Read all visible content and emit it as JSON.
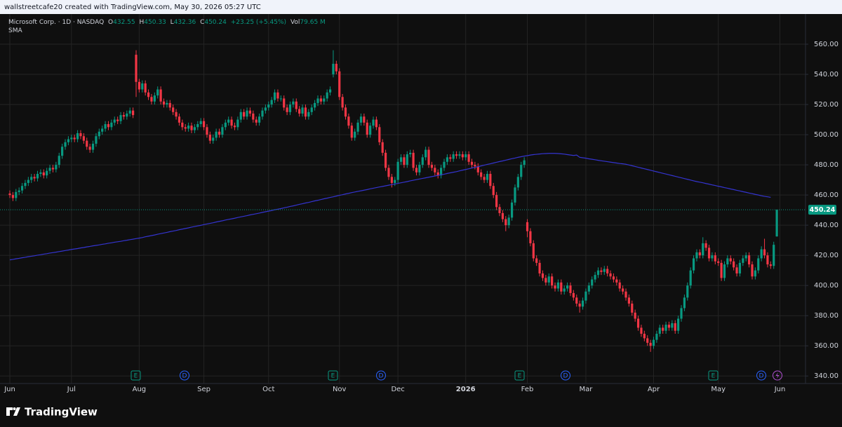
{
  "header": {
    "attribution": "wallstreetcafe20 created with TradingView.com, May 30, 2026 05:27 UTC"
  },
  "legend": {
    "symbol": "Microsoft Corp. · 1D · NASDAQ",
    "open_label": "O",
    "high_label": "H",
    "low_label": "L",
    "close_label": "C",
    "change": "+23.25 (+5.45%)",
    "volume_label": "Vol",
    "volume": "79.65 M"
  },
  "events": [
    "E",
    "D",
    "E",
    "D",
    "E",
    "D",
    "E",
    "D"
  ],
  "footer": {
    "logo": "TradingView"
  },
  "chart_data": {
    "type": "candlestick",
    "up_color": "#089981",
    "down_color": "#f23645",
    "grid": true,
    "ylim": [
      335,
      580
    ],
    "yticks": [
      {
        "value": 340,
        "label": "340.00"
      },
      {
        "value": 360,
        "label": "360.00"
      },
      {
        "value": 380,
        "label": "380.00"
      },
      {
        "value": 400,
        "label": "400.00"
      },
      {
        "value": 420,
        "label": "420.00"
      },
      {
        "value": 440,
        "label": "440.00"
      },
      {
        "value": 460,
        "label": "460.00"
      },
      {
        "value": 480,
        "label": "480.00"
      },
      {
        "value": 500,
        "label": "500.00"
      },
      {
        "value": 520,
        "label": "520.00"
      },
      {
        "value": 540,
        "label": "540.00"
      },
      {
        "value": 560,
        "label": "560.00"
      }
    ],
    "categories": [
      "Jun",
      null,
      null,
      null,
      null,
      null,
      null,
      null,
      null,
      null,
      null,
      null,
      null,
      null,
      null,
      null,
      null,
      null,
      null,
      null,
      "Jul",
      null,
      null,
      null,
      null,
      null,
      null,
      null,
      null,
      null,
      null,
      null,
      null,
      null,
      null,
      null,
      null,
      null,
      null,
      null,
      null,
      null,
      "Aug",
      null,
      null,
      null,
      null,
      null,
      null,
      null,
      null,
      null,
      null,
      null,
      null,
      null,
      null,
      null,
      null,
      null,
      null,
      null,
      null,
      "Sep",
      null,
      null,
      null,
      null,
      null,
      null,
      null,
      null,
      null,
      null,
      null,
      null,
      null,
      null,
      null,
      null,
      null,
      null,
      null,
      null,
      "Oct",
      null,
      null,
      null,
      null,
      null,
      null,
      null,
      null,
      null,
      null,
      null,
      null,
      null,
      null,
      null,
      null,
      null,
      null,
      null,
      null,
      null,
      null,
      "Nov",
      null,
      null,
      null,
      null,
      null,
      null,
      null,
      null,
      null,
      null,
      null,
      null,
      null,
      null,
      null,
      null,
      null,
      null,
      "Dec",
      null,
      null,
      null,
      null,
      null,
      null,
      null,
      null,
      null,
      null,
      null,
      null,
      null,
      null,
      null,
      null,
      null,
      null,
      null,
      null,
      null,
      "2026",
      null,
      null,
      null,
      null,
      null,
      null,
      null,
      null,
      null,
      null,
      null,
      null,
      null,
      null,
      null,
      null,
      null,
      null,
      null,
      "Feb",
      null,
      null,
      null,
      null,
      null,
      null,
      null,
      null,
      null,
      null,
      null,
      null,
      null,
      null,
      null,
      null,
      null,
      null,
      "Mar",
      null,
      null,
      null,
      null,
      null,
      null,
      null,
      null,
      null,
      null,
      null,
      null,
      null,
      null,
      null,
      null,
      null,
      null,
      null,
      null,
      null,
      "Apr",
      null,
      null,
      null,
      null,
      null,
      null,
      null,
      null,
      null,
      null,
      null,
      null,
      null,
      null,
      null,
      null,
      null,
      null,
      null,
      null,
      "May",
      null,
      null,
      null,
      null,
      null,
      null,
      null,
      null,
      null,
      null,
      null,
      null,
      null,
      null,
      null,
      null,
      null,
      null,
      null,
      "Jun"
    ],
    "open": [
      461,
      460,
      458,
      462,
      463,
      466,
      468,
      470,
      472,
      471,
      474,
      475,
      473,
      476,
      478,
      477,
      480,
      486,
      492,
      495,
      497,
      498,
      497,
      501,
      499,
      496,
      492,
      490,
      494,
      499,
      502,
      504,
      507,
      505,
      508,
      510,
      509,
      513,
      512,
      514,
      516,
      553,
      535,
      530,
      534,
      528,
      525,
      522,
      526,
      530,
      522,
      520,
      521,
      518,
      515,
      512,
      508,
      505,
      504,
      506,
      503,
      505,
      507,
      509,
      505,
      500,
      496,
      498,
      502,
      500,
      505,
      508,
      510,
      506,
      505,
      510,
      515,
      512,
      516,
      514,
      510,
      508,
      512,
      516,
      518,
      520,
      523,
      528,
      524,
      524,
      518,
      515,
      520,
      522,
      517,
      514,
      518,
      512,
      515,
      518,
      521,
      524,
      522,
      524,
      528,
      540,
      547,
      542,
      525,
      518,
      512,
      506,
      498,
      502,
      508,
      512,
      508,
      500,
      506,
      510,
      505,
      495,
      488,
      478,
      472,
      468,
      470,
      482,
      485,
      480,
      487,
      488,
      478,
      475,
      480,
      485,
      490,
      480,
      478,
      475,
      473,
      478,
      482,
      485,
      484,
      487,
      486,
      487,
      485,
      487,
      482,
      480,
      479,
      475,
      472,
      470,
      474,
      466,
      460,
      452,
      448,
      444,
      440,
      445,
      455,
      465,
      472,
      480,
      442,
      436,
      428,
      418,
      415,
      408,
      405,
      402,
      406,
      400,
      398,
      402,
      396,
      398,
      400,
      395,
      392,
      388,
      386,
      390,
      396,
      400,
      404,
      407,
      410,
      409,
      411,
      408,
      406,
      404,
      402,
      398,
      396,
      392,
      388,
      382,
      378,
      372,
      368,
      365,
      362,
      360,
      364,
      368,
      372,
      370,
      374,
      372,
      375,
      370,
      378,
      385,
      392,
      400,
      410,
      418,
      422,
      420,
      428,
      425,
      418,
      420,
      416,
      415,
      405,
      414,
      418,
      416,
      412,
      408,
      415,
      418,
      420,
      414,
      406,
      410,
      418,
      424,
      420,
      414,
      413,
      432.55,
      null
    ],
    "high": [
      463,
      462,
      464,
      465,
      468,
      470,
      472,
      474,
      474,
      476,
      477,
      477,
      478,
      480,
      480,
      482,
      488,
      494,
      497,
      499,
      500,
      500,
      503,
      503,
      501,
      498,
      494,
      496,
      501,
      504,
      506,
      509,
      509,
      510,
      512,
      512,
      515,
      515,
      516,
      518,
      518,
      556,
      537,
      536,
      536,
      530,
      527,
      528,
      532,
      532,
      524,
      523,
      523,
      520,
      517,
      514,
      510,
      507,
      508,
      508,
      507,
      509,
      511,
      511,
      507,
      502,
      500,
      504,
      504,
      507,
      510,
      512,
      512,
      508,
      512,
      517,
      517,
      518,
      518,
      516,
      512,
      514,
      518,
      520,
      522,
      525,
      530,
      530,
      526,
      526,
      520,
      522,
      524,
      524,
      519,
      520,
      520,
      517,
      520,
      523,
      526,
      526,
      526,
      530,
      532,
      556,
      549,
      544,
      527,
      520,
      514,
      508,
      504,
      510,
      514,
      514,
      510,
      508,
      512,
      512,
      507,
      497,
      490,
      480,
      474,
      472,
      484,
      487,
      487,
      489,
      490,
      490,
      480,
      482,
      487,
      492,
      492,
      482,
      480,
      477,
      480,
      484,
      487,
      487,
      489,
      489,
      489,
      489,
      489,
      489,
      484,
      482,
      481,
      477,
      474,
      476,
      476,
      468,
      462,
      454,
      450,
      446,
      447,
      457,
      467,
      474,
      482,
      485,
      444,
      438,
      430,
      420,
      417,
      410,
      407,
      408,
      408,
      402,
      404,
      404,
      400,
      402,
      402,
      397,
      394,
      390,
      392,
      398,
      402,
      406,
      409,
      412,
      412,
      413,
      413,
      410,
      408,
      406,
      404,
      400,
      398,
      394,
      390,
      384,
      380,
      374,
      370,
      367,
      364,
      366,
      370,
      374,
      374,
      376,
      376,
      377,
      377,
      380,
      387,
      394,
      402,
      412,
      420,
      424,
      424,
      432,
      430,
      427,
      422,
      422,
      418,
      417,
      416,
      420,
      420,
      418,
      414,
      417,
      420,
      422,
      422,
      416,
      412,
      420,
      426,
      431,
      422,
      416,
      429,
      450.33,
      null
    ],
    "low": [
      458,
      456,
      456,
      460,
      461,
      464,
      466,
      468,
      469,
      469,
      472,
      471,
      471,
      474,
      475,
      475,
      478,
      484,
      490,
      493,
      495,
      495,
      495,
      497,
      494,
      490,
      488,
      488,
      492,
      497,
      500,
      502,
      503,
      503,
      506,
      507,
      507,
      510,
      510,
      512,
      511,
      525,
      528,
      528,
      526,
      523,
      520,
      520,
      524,
      520,
      518,
      518,
      516,
      513,
      510,
      506,
      503,
      502,
      502,
      501,
      501,
      503,
      505,
      503,
      498,
      494,
      494,
      496,
      498,
      498,
      503,
      506,
      504,
      503,
      503,
      508,
      510,
      510,
      512,
      508,
      506,
      506,
      510,
      514,
      516,
      518,
      521,
      522,
      522,
      516,
      513,
      513,
      518,
      515,
      512,
      512,
      510,
      510,
      513,
      516,
      519,
      520,
      520,
      522,
      526,
      538,
      540,
      523,
      516,
      510,
      504,
      496,
      496,
      500,
      506,
      506,
      498,
      498,
      504,
      503,
      493,
      486,
      476,
      470,
      465,
      466,
      468,
      480,
      478,
      478,
      485,
      476,
      473,
      473,
      478,
      483,
      478,
      476,
      473,
      471,
      471,
      476,
      480,
      482,
      482,
      484,
      484,
      483,
      483,
      480,
      478,
      477,
      473,
      470,
      468,
      468,
      464,
      458,
      450,
      446,
      442,
      436,
      438,
      443,
      453,
      463,
      470,
      478,
      432,
      426,
      416,
      413,
      406,
      403,
      400,
      400,
      398,
      396,
      396,
      394,
      394,
      396,
      393,
      390,
      386,
      382,
      384,
      388,
      394,
      398,
      402,
      405,
      407,
      407,
      406,
      404,
      402,
      400,
      396,
      394,
      390,
      386,
      380,
      376,
      370,
      366,
      363,
      360,
      356,
      358,
      362,
      366,
      368,
      368,
      370,
      370,
      368,
      368,
      376,
      383,
      390,
      398,
      408,
      416,
      418,
      418,
      423,
      416,
      416,
      414,
      413,
      403,
      403,
      412,
      414,
      410,
      406,
      406,
      413,
      416,
      412,
      404,
      404,
      408,
      416,
      418,
      412,
      411,
      411,
      432.36,
      null
    ],
    "close": [
      460,
      458,
      462,
      463,
      466,
      468,
      470,
      472,
      471,
      474,
      475,
      473,
      476,
      478,
      477,
      480,
      486,
      492,
      495,
      497,
      498,
      497,
      501,
      499,
      496,
      492,
      490,
      494,
      499,
      502,
      504,
      507,
      505,
      508,
      510,
      509,
      513,
      512,
      514,
      516,
      513,
      535,
      530,
      534,
      528,
      525,
      522,
      526,
      530,
      522,
      520,
      521,
      518,
      515,
      512,
      508,
      505,
      504,
      506,
      503,
      505,
      507,
      509,
      505,
      500,
      496,
      498,
      502,
      500,
      505,
      508,
      510,
      506,
      505,
      510,
      515,
      512,
      516,
      514,
      510,
      508,
      512,
      516,
      518,
      520,
      523,
      528,
      524,
      524,
      518,
      515,
      520,
      522,
      517,
      514,
      518,
      512,
      515,
      518,
      521,
      524,
      522,
      524,
      528,
      530,
      547,
      542,
      525,
      518,
      512,
      506,
      498,
      502,
      508,
      512,
      508,
      500,
      506,
      510,
      505,
      495,
      488,
      478,
      472,
      468,
      470,
      482,
      485,
      480,
      487,
      488,
      478,
      475,
      480,
      485,
      490,
      480,
      478,
      475,
      473,
      478,
      482,
      485,
      484,
      487,
      486,
      487,
      485,
      487,
      482,
      480,
      479,
      475,
      472,
      470,
      474,
      466,
      460,
      452,
      448,
      444,
      440,
      445,
      455,
      465,
      472,
      480,
      483,
      436,
      428,
      418,
      415,
      408,
      405,
      402,
      406,
      400,
      398,
      402,
      396,
      398,
      400,
      395,
      392,
      388,
      386,
      390,
      396,
      400,
      404,
      407,
      410,
      409,
      411,
      408,
      406,
      404,
      402,
      398,
      396,
      392,
      388,
      382,
      378,
      372,
      368,
      365,
      362,
      360,
      364,
      368,
      372,
      370,
      374,
      372,
      375,
      370,
      378,
      385,
      392,
      400,
      410,
      418,
      422,
      420,
      428,
      425,
      418,
      420,
      416,
      415,
      405,
      414,
      418,
      416,
      412,
      408,
      415,
      418,
      420,
      414,
      406,
      410,
      418,
      424,
      420,
      414,
      413,
      426.99,
      450.24,
      null
    ],
    "sma": {
      "name": "SMA",
      "color": "#3434d0",
      "values": [
        417.0,
        417.3,
        417.7,
        418.0,
        418.4,
        418.7,
        419.1,
        419.4,
        419.7,
        420.1,
        420.4,
        420.8,
        421.1,
        421.5,
        421.8,
        422.1,
        422.5,
        422.8,
        423.2,
        423.5,
        423.9,
        424.2,
        424.5,
        424.9,
        425.2,
        425.6,
        425.9,
        426.3,
        426.6,
        426.9,
        427.3,
        427.6,
        428.0,
        428.3,
        428.7,
        429.0,
        429.3,
        429.7,
        430.0,
        430.4,
        430.7,
        431.1,
        431.4,
        431.8,
        432.3,
        432.7,
        433.1,
        433.5,
        434.0,
        434.4,
        434.8,
        435.2,
        435.7,
        436.1,
        436.5,
        437.0,
        437.4,
        437.8,
        438.2,
        438.7,
        439.1,
        439.5,
        439.9,
        440.4,
        440.8,
        441.2,
        441.6,
        442.1,
        442.5,
        442.9,
        443.4,
        443.8,
        444.2,
        444.6,
        445.1,
        445.5,
        445.9,
        446.3,
        446.8,
        447.2,
        447.6,
        448.0,
        448.5,
        448.9,
        449.3,
        449.7,
        450.2,
        450.6,
        451.0,
        451.5,
        451.9,
        452.4,
        452.8,
        453.3,
        453.8,
        454.2,
        454.7,
        455.1,
        455.6,
        456.1,
        456.5,
        457.0,
        457.5,
        457.9,
        458.4,
        458.8,
        459.3,
        459.8,
        460.2,
        460.7,
        461.1,
        461.6,
        462.0,
        462.4,
        462.8,
        463.2,
        463.6,
        464.1,
        464.5,
        464.9,
        465.3,
        465.7,
        466.1,
        466.5,
        466.9,
        467.3,
        467.7,
        468.1,
        468.5,
        468.9,
        469.4,
        469.8,
        470.2,
        470.6,
        471.0,
        471.4,
        471.8,
        472.2,
        472.6,
        473.0,
        473.4,
        473.8,
        474.3,
        474.7,
        475.1,
        475.5,
        476.0,
        476.5,
        476.9,
        477.4,
        477.9,
        478.4,
        478.8,
        479.3,
        479.8,
        480.3,
        480.7,
        481.2,
        481.7,
        482.2,
        482.6,
        483.1,
        483.6,
        484.1,
        484.5,
        485.0,
        485.4,
        485.8,
        486.1,
        486.5,
        486.8,
        487.0,
        487.2,
        487.4,
        487.5,
        487.6,
        487.6,
        487.6,
        487.5,
        487.3,
        487.1,
        486.8,
        486.5,
        486.2,
        486.5,
        485.0,
        484.7,
        484.4,
        484.0,
        483.7,
        483.4,
        483.0,
        482.7,
        482.4,
        482.1,
        481.8,
        481.5,
        481.2,
        480.9,
        480.7,
        480.4,
        479.9,
        479.4,
        478.9,
        478.4,
        477.9,
        477.4,
        476.9,
        476.4,
        475.9,
        475.4,
        474.9,
        474.4,
        473.9,
        473.4,
        472.9,
        472.4,
        471.9,
        471.4,
        470.9,
        470.4,
        469.9,
        469.4,
        468.9,
        468.5,
        468.1,
        467.6,
        467.2,
        466.7,
        466.3,
        465.8,
        465.4,
        464.9,
        464.5,
        464.0,
        463.6,
        463.1,
        462.7,
        462.2,
        461.8,
        461.3,
        460.9,
        460.4,
        460.0,
        459.5,
        459.1,
        458.8,
        458.46,
        null
      ]
    }
  }
}
